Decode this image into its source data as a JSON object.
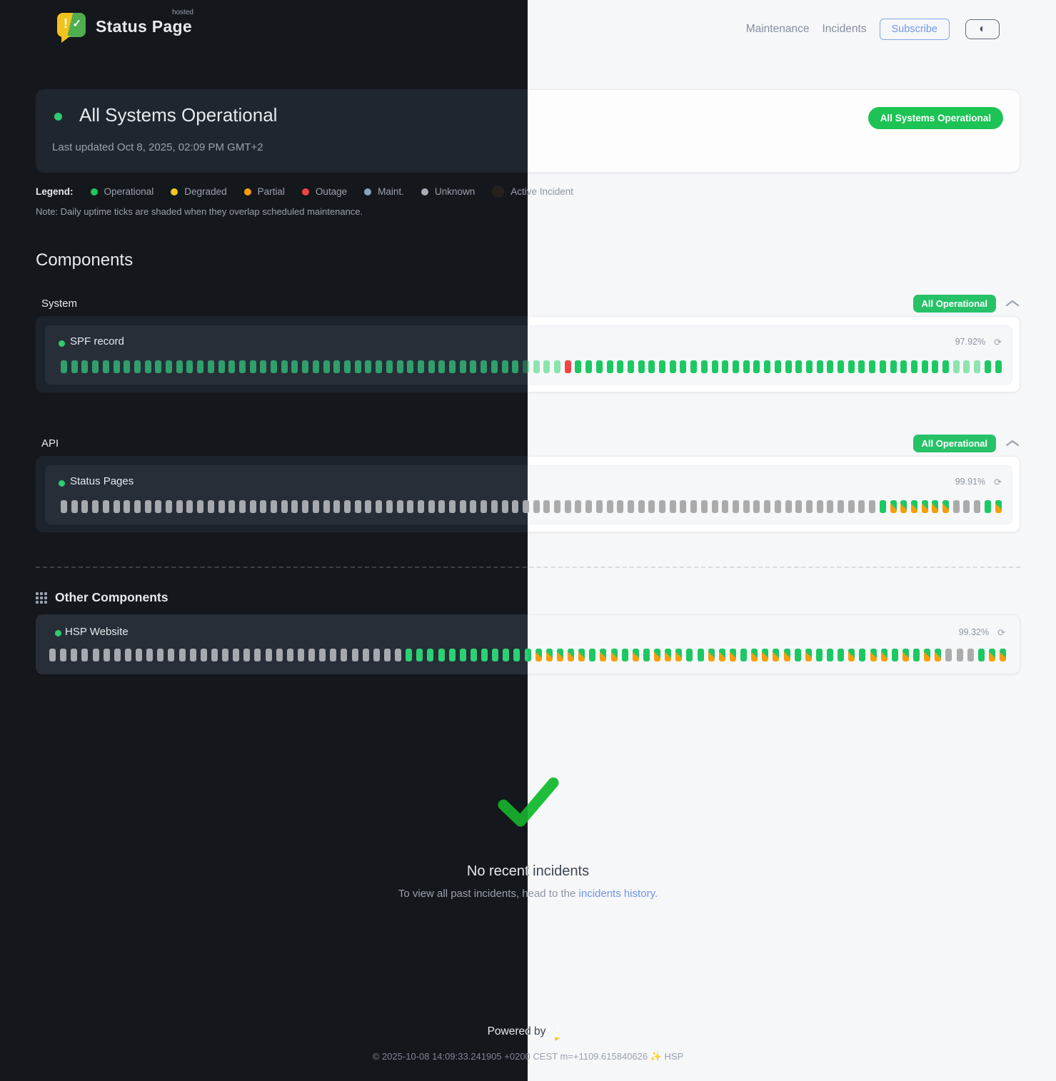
{
  "header": {
    "brand_name": "Status Page",
    "brand_badge": "hosted",
    "nav_maintenance": "Maintenance",
    "nav_incidents": "Incidents",
    "subscribe": "Subscribe",
    "theme_toggle_glyph": "◐"
  },
  "hero": {
    "title": "All Systems Operational",
    "last_updated": "Last updated Oct 8, 2025, 02:09 PM GMT+2",
    "badge": "All Systems Operational",
    "badge_color": "#1dc355"
  },
  "legend": {
    "label": "Legend:",
    "items": [
      {
        "label": "Operational",
        "color": "#22c55e"
      },
      {
        "label": "Degraded",
        "color": "#f4c427"
      },
      {
        "label": "Partial",
        "color": "#f59e0b"
      },
      {
        "label": "Outage",
        "color": "#ef4444"
      },
      {
        "label": "Maint.",
        "color": "#8ba3b5"
      },
      {
        "label": "Unknown",
        "color": "#a8aeb8"
      },
      {
        "label": "Active Incident",
        "color": "#26211d"
      }
    ],
    "note": "Note: Daily uptime ticks are shaded when they overlap scheduled maintenance."
  },
  "components": {
    "heading": "Components",
    "tick_codes": {
      "o": "operational",
      "f": "operational-faded",
      "x": "outage",
      "u": "unknown",
      "m": "operational-with-maintenance-shade"
    },
    "groups": [
      {
        "label": "System",
        "badge": "All Operational",
        "rows": [
          {
            "name": "SPF record",
            "uptime": "97.92%",
            "ticks": "ooooooooooooooooooooooooooooooooooooooooooooffffxoooooooooooooooooooooooooooooooooooofffoo"
          }
        ]
      },
      {
        "label": "API",
        "badge": "All Operational",
        "rows": [
          {
            "name": "Status Pages",
            "uptime": "99.91%",
            "ticks": "uuuuuuuuuuuuuuuuuuuuuuuuuuuuuuuuuuuuuuuuuuuuuuuuuuuuuuuuuuuuuuuuuuuuuuuuuuuuuuommmmmmuuuom"
          }
        ]
      }
    ]
  },
  "other": {
    "title": "Other Components",
    "rows": [
      {
        "name": "HSP Website",
        "uptime": "99.32%",
        "ticks": "uuuuuuuuuuuuuuuuuuuuuuuuuuuuuuuuuoooooooooooommmmmommomommmoommmommmmomooomommomommuuuomm"
      }
    ]
  },
  "incidents": {
    "title": "No recent incidents",
    "subtext_before": "To view all past incidents, head to the ",
    "link": "incidents history.",
    "check_color": "#1fbe3a"
  },
  "footer": {
    "powered_by": "Powered by",
    "copyright": "© 2025-10-08 14:09:33.241905 +0200 CEST m=+1109.615840626 ✨ HSP"
  }
}
